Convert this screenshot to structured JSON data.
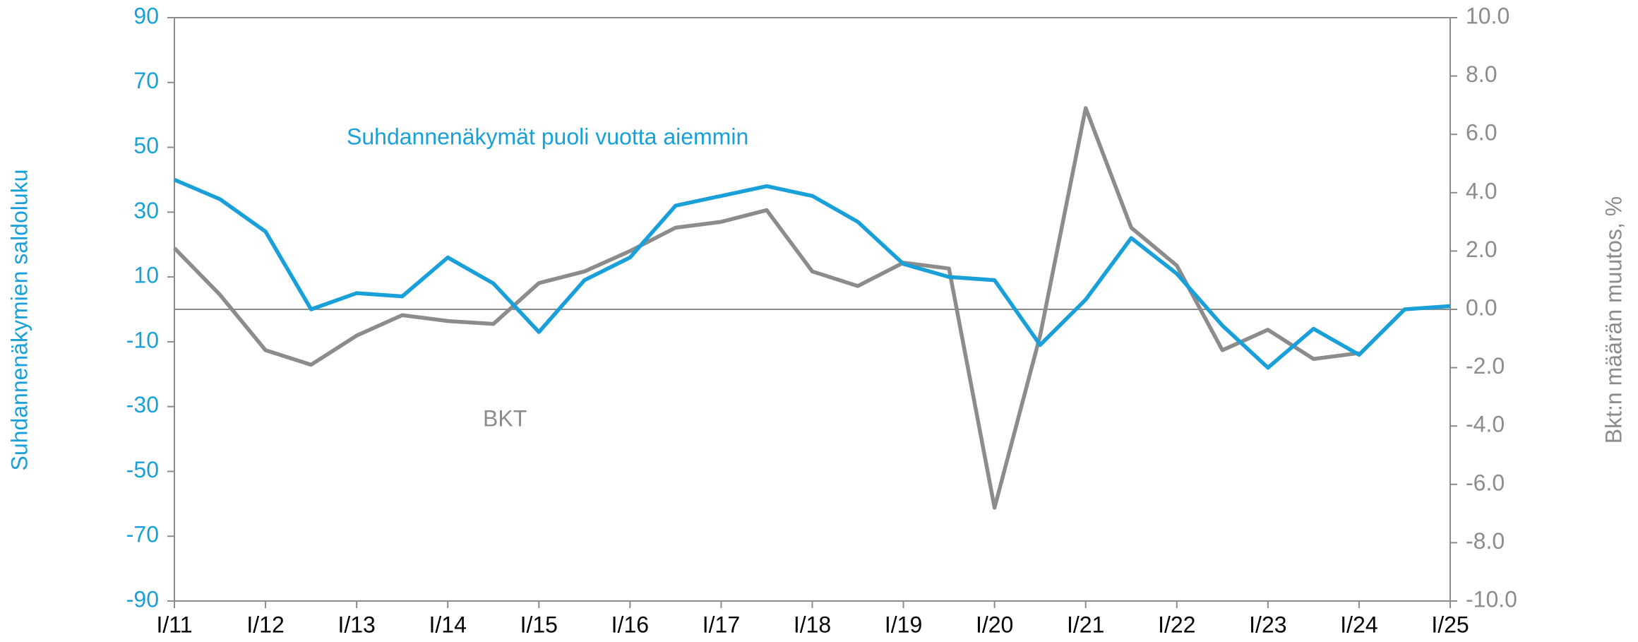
{
  "chart_data": {
    "type": "line",
    "annotations": [
      "Suhdannenäkymät puoli vuotta aiemmin",
      "BKT"
    ],
    "ylabel": "Suhdannenäkymien saldoluku",
    "y2label": "Bkt:n määrän muutos, %",
    "categories": [
      "I/11",
      null,
      "I/12",
      null,
      "I/13",
      null,
      "I/14",
      null,
      "I/15",
      null,
      "I/16",
      null,
      "I/17",
      null,
      "I/18",
      null,
      "I/19",
      null,
      "I/20",
      null,
      "I/21",
      null,
      "I/22",
      null,
      "I/23",
      null,
      "I/24",
      null,
      "I/25"
    ],
    "series": [
      {
        "name": "Suhdannenäkymät puoli vuotta aiemmin",
        "color": "#1aa0d8",
        "axis": "y",
        "values": [
          40,
          34,
          24,
          0,
          5,
          4,
          16,
          8,
          -7,
          9,
          16,
          32,
          35,
          38,
          35,
          27,
          14,
          10,
          9,
          -11,
          3,
          22,
          11,
          -5,
          -18,
          -6,
          -14,
          0,
          1
        ]
      },
      {
        "name": "BKT",
        "color": "#8c8c8c",
        "axis": "y2",
        "values": [
          2.1,
          0.5,
          -1.4,
          -1.9,
          -0.9,
          -0.2,
          -0.4,
          -0.5,
          0.9,
          1.3,
          2.0,
          2.8,
          3.0,
          3.4,
          1.3,
          0.8,
          1.6,
          1.4,
          -6.8,
          -0.9,
          6.9,
          2.8,
          1.5,
          -1.4,
          -0.7,
          -1.7,
          -1.5,
          null,
          null
        ]
      }
    ],
    "ylim": [
      -90,
      90
    ],
    "yticks": [
      -90,
      -70,
      -50,
      -30,
      -10,
      10,
      30,
      50,
      70,
      90
    ],
    "y2lim": [
      -10,
      10
    ],
    "y2ticks": [
      {
        "value": -10,
        "label": "-10.0"
      },
      {
        "value": -8,
        "label": "-8.0"
      },
      {
        "value": -6,
        "label": "-6.0"
      },
      {
        "value": -4,
        "label": "-4.0"
      },
      {
        "value": -2,
        "label": "-2.0"
      },
      {
        "value": 0,
        "label": "0.0"
      },
      {
        "value": 2,
        "label": "2.0"
      },
      {
        "value": 4,
        "label": "4.0"
      },
      {
        "value": 6,
        "label": "6.0"
      },
      {
        "value": 8,
        "label": "8.0"
      },
      {
        "value": 10,
        "label": "10.0"
      }
    ],
    "ytick_color": "#1aa0d8",
    "y2tick_color": "#8c8c8c"
  }
}
